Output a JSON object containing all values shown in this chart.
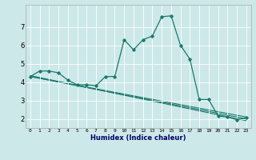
{
  "xlabel": "Humidex (Indice chaleur)",
  "ylabel": "",
  "background_color": "#cce8e8",
  "line_color": "#1a7a6e",
  "xlim": [
    -0.5,
    23.5
  ],
  "ylim": [
    1.5,
    8.2
  ],
  "yticks": [
    2,
    3,
    4,
    5,
    6,
    7
  ],
  "xticks": [
    0,
    1,
    2,
    3,
    4,
    5,
    6,
    7,
    8,
    9,
    10,
    11,
    12,
    13,
    14,
    15,
    16,
    17,
    18,
    19,
    20,
    21,
    22,
    23
  ],
  "series": [
    [
      0,
      4.3
    ],
    [
      1,
      4.6
    ],
    [
      2,
      4.6
    ],
    [
      3,
      4.5
    ],
    [
      4,
      4.1
    ],
    [
      5,
      3.85
    ],
    [
      6,
      3.85
    ],
    [
      7,
      3.8
    ],
    [
      8,
      4.3
    ],
    [
      9,
      4.3
    ],
    [
      10,
      6.3
    ],
    [
      11,
      5.75
    ],
    [
      12,
      6.3
    ],
    [
      13,
      6.5
    ],
    [
      14,
      7.55
    ],
    [
      15,
      7.6
    ],
    [
      16,
      6.0
    ],
    [
      17,
      5.25
    ],
    [
      18,
      3.05
    ],
    [
      19,
      3.05
    ],
    [
      20,
      2.15
    ],
    [
      21,
      2.1
    ],
    [
      22,
      1.95
    ],
    [
      23,
      2.05
    ]
  ],
  "trend_lines": [
    [
      [
        0,
        4.3
      ],
      [
        23,
        2.1
      ]
    ],
    [
      [
        0,
        4.3
      ],
      [
        23,
        2.0
      ]
    ],
    [
      [
        0,
        4.35
      ],
      [
        23,
        1.9
      ]
    ]
  ]
}
